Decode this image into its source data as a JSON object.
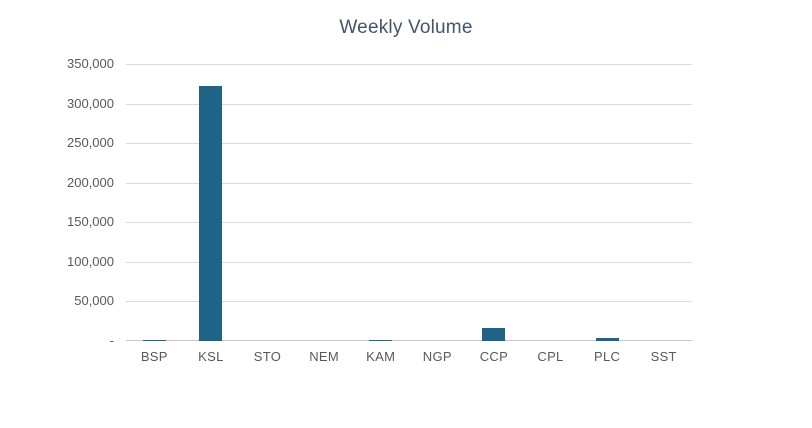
{
  "chart_data": {
    "type": "bar",
    "title": "Weekly Volume",
    "categories": [
      "BSP",
      "KSL",
      "STO",
      "NEM",
      "KAM",
      "NGP",
      "CCP",
      "CPL",
      "PLC",
      "SST"
    ],
    "values": [
      800,
      322000,
      0,
      0,
      800,
      0,
      16000,
      0,
      4000,
      0
    ],
    "xlabel": "",
    "ylabel": "",
    "ylim": [
      0,
      350000
    ],
    "y_ticks": [
      {
        "value": 0,
        "label": "-"
      },
      {
        "value": 50000,
        "label": "50,000"
      },
      {
        "value": 100000,
        "label": "100,000"
      },
      {
        "value": 150000,
        "label": "150,000"
      },
      {
        "value": 200000,
        "label": "200,000"
      },
      {
        "value": 250000,
        "label": "250,000"
      },
      {
        "value": 300000,
        "label": "300,000"
      },
      {
        "value": 350000,
        "label": "350,000"
      }
    ],
    "grid": true,
    "legend": false,
    "colors": {
      "bar": "#1F6487",
      "title": "#44546A",
      "axis_label": "#595959",
      "gridline": "#DBDBDB",
      "axis_line": "#C8C8C8"
    }
  }
}
